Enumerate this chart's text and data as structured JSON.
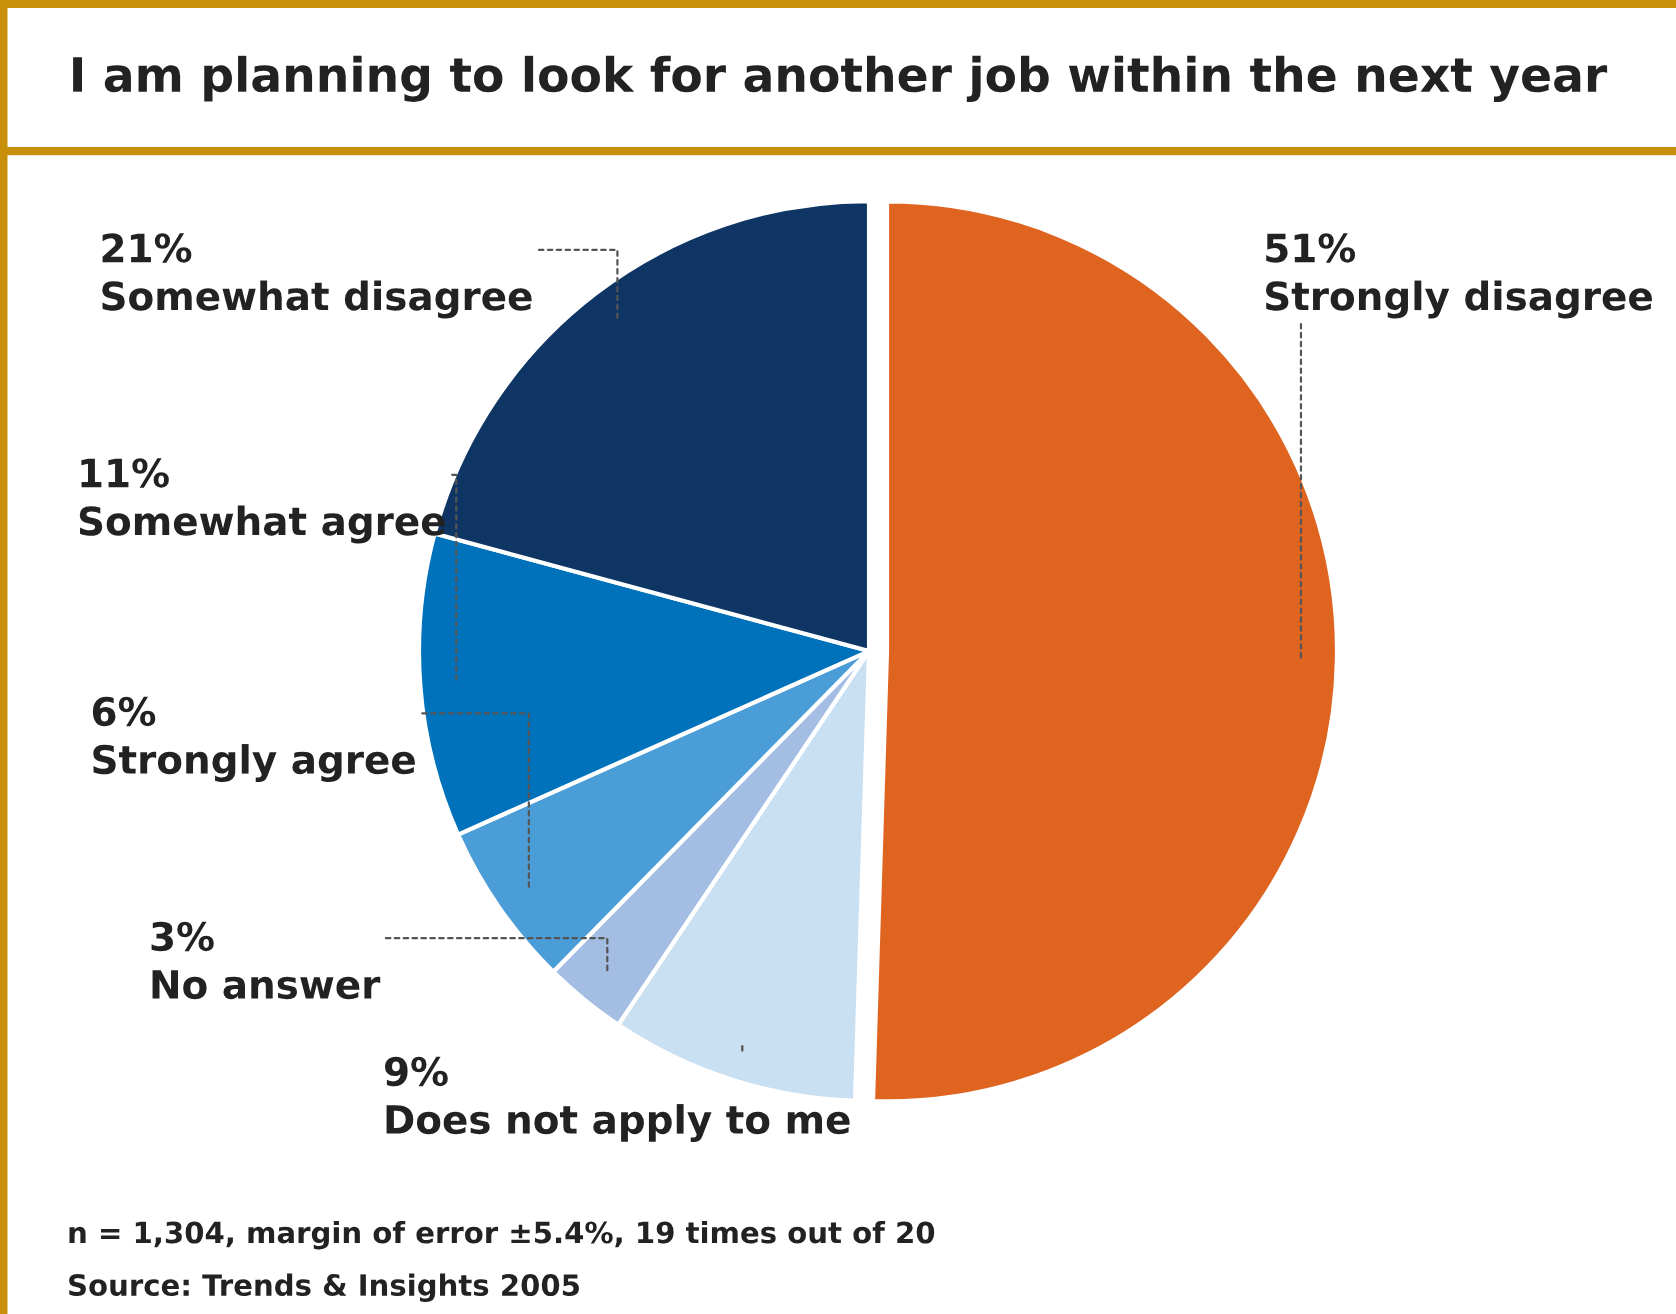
{
  "chart_data": {
    "type": "pie",
    "title": "I am planning to look for another job within the next year",
    "categories": [
      "Strongly disagree",
      "Does not apply to me",
      "No answer",
      "Strongly agree",
      "Somewhat agree",
      "Somewhat disagree"
    ],
    "values": [
      51,
      9,
      3,
      6,
      11,
      21
    ],
    "value_labels": [
      "51%",
      "9%",
      "3%",
      "6%",
      "11%",
      "21%"
    ],
    "colors": [
      "#de6420",
      "#c9dff2",
      "#a3bde3",
      "#4a9dd6",
      "#0072bb",
      "#0e3564"
    ],
    "annotations": [
      "n = 1,304, margin of error ±5.4%, 19 times out of 20",
      "Source: Trends & Insights 2005"
    ]
  }
}
